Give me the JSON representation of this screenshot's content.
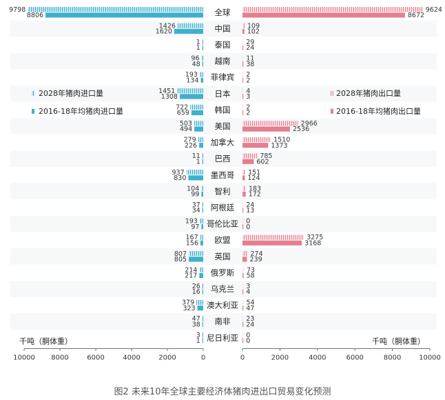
{
  "chart_data": {
    "type": "bar",
    "orientation": "horizontal-butterfly",
    "caption": "图2 未来10年全球主要经济体猪肉进出口贸易变化预测",
    "categories": [
      "全球",
      "中国",
      "泰国",
      "越南",
      "菲律宾",
      "日本",
      "韩国",
      "美国",
      "加拿大",
      "巴西",
      "墨西哥",
      "智利",
      "阿根廷",
      "哥伦比亚",
      "欧盟",
      "英国",
      "俄罗斯",
      "乌克兰",
      "澳大利亚",
      "南非",
      "尼日利亚"
    ],
    "import_series": [
      {
        "name": "2028年猪肉进口量",
        "values": [
          9798,
          1426,
          1,
          96,
          193,
          1451,
          722,
          503,
          279,
          11,
          937,
          104,
          37,
          193,
          167,
          807,
          214,
          26,
          379,
          47,
          3
        ]
      },
      {
        "name": "2016-18年均猪肉进口量",
        "values": [
          8806,
          1620,
          1,
          48,
          134,
          1308,
          659,
          494,
          226,
          1,
          830,
          99,
          34,
          97,
          156,
          805,
          217,
          16,
          323,
          38,
          1
        ]
      }
    ],
    "export_series": [
      {
        "name": "2028年猪肉出口量",
        "values": [
          9624,
          109,
          29,
          11,
          2,
          4,
          2,
          2966,
          1510,
          785,
          151,
          183,
          24,
          0,
          3275,
          274,
          73,
          3,
          54,
          23,
          0
        ]
      },
      {
        "name": "2016-18年均猪肉出口量",
        "values": [
          8672,
          102,
          24,
          38,
          2,
          3,
          2,
          2536,
          1373,
          602,
          124,
          172,
          13,
          0,
          3168,
          239,
          58,
          4,
          47,
          24,
          0
        ]
      }
    ],
    "unit_label_left": "千吨（胴体重）",
    "unit_label_right": "千吨（胴体重）",
    "x_ticks_left": [
      "10000",
      "8000",
      "6000",
      "4000",
      "2000",
      "0"
    ],
    "x_ticks_right": [
      "0",
      "2000",
      "4000",
      "6000",
      "8000",
      "10000"
    ],
    "xlim": [
      0,
      10000
    ],
    "colors": {
      "import_2028": "#9dd4e6",
      "import_avg": "#3fb0cc",
      "export_2028": "#f6b8c2",
      "export_avg": "#e57f8f"
    },
    "legend_placement_import": "left",
    "legend_placement_export": "right"
  }
}
